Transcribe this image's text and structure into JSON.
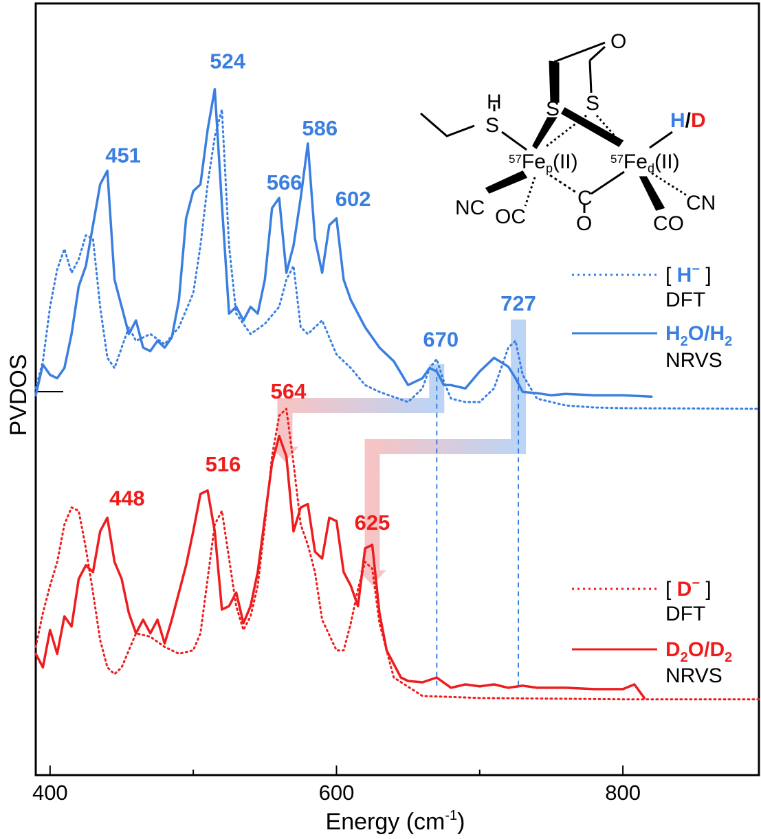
{
  "chart_data": {
    "type": "line",
    "xlabel": "Energy (cm",
    "xlabel_sup": "-1",
    "xlabel_close": ")",
    "ylabel": "PVDOS",
    "xlim": [
      390,
      895
    ],
    "x_ticks": [
      400,
      600,
      800
    ],
    "x_tick_labels": [
      "400",
      "600",
      "800"
    ],
    "ylim": [
      0,
      10
    ],
    "grid": false,
    "colors": {
      "blue": "#3a7fe0",
      "red": "#ee1c1c",
      "blue_band": "#bcd4f5",
      "red_band": "#f6c4c4"
    },
    "series": [
      {
        "name": "H2O/H2 NRVS",
        "color": "#3a7fe0",
        "style": "solid",
        "baseline": 5.0,
        "x": [
          390,
          395,
          400,
          405,
          410,
          415,
          420,
          425,
          430,
          435,
          440,
          445,
          450,
          455,
          460,
          465,
          470,
          475,
          480,
          485,
          490,
          495,
          500,
          505,
          510,
          515,
          520,
          525,
          530,
          535,
          540,
          545,
          550,
          555,
          560,
          565,
          570,
          575,
          580,
          585,
          590,
          595,
          600,
          605,
          610,
          620,
          630,
          640,
          650,
          660,
          665,
          670,
          675,
          680,
          690,
          700,
          710,
          720,
          725,
          730,
          740,
          750,
          760,
          780,
          800,
          820
        ],
        "y": [
          5.2,
          5.65,
          5.5,
          5.45,
          5.6,
          6.1,
          6.8,
          7.1,
          7.7,
          8.3,
          8.5,
          6.9,
          6.5,
          6.1,
          6.3,
          5.9,
          5.85,
          6.0,
          5.9,
          6.05,
          6.6,
          7.8,
          8.2,
          8.3,
          9.1,
          9.7,
          8.0,
          6.4,
          6.5,
          6.3,
          6.5,
          6.4,
          6.9,
          7.95,
          8.1,
          7.0,
          7.4,
          8.1,
          8.9,
          7.5,
          7.0,
          7.7,
          7.8,
          6.9,
          6.6,
          6.2,
          5.9,
          5.7,
          5.35,
          5.45,
          5.6,
          5.55,
          5.35,
          5.35,
          5.3,
          5.55,
          5.75,
          5.62,
          5.45,
          5.25,
          5.23,
          5.2,
          5.22,
          5.2,
          5.2,
          5.18
        ]
      },
      {
        "name": "H- DFT",
        "color": "#3a7fe0",
        "style": "dotted",
        "baseline": 5.0,
        "x": [
          390,
          395,
          400,
          405,
          410,
          415,
          420,
          425,
          430,
          435,
          440,
          445,
          450,
          455,
          460,
          470,
          480,
          490,
          500,
          505,
          510,
          515,
          520,
          525,
          530,
          540,
          550,
          560,
          565,
          570,
          575,
          580,
          590,
          600,
          610,
          620,
          630,
          650,
          660,
          665,
          670,
          675,
          680,
          690,
          700,
          710,
          720,
          725,
          730,
          740,
          760,
          780,
          800,
          895
        ],
        "y": [
          5.3,
          5.7,
          6.5,
          7.05,
          7.35,
          7.0,
          7.2,
          7.55,
          7.5,
          6.5,
          5.75,
          5.6,
          5.9,
          6.2,
          6.0,
          6.1,
          5.95,
          6.2,
          6.7,
          7.4,
          8.3,
          9.0,
          9.4,
          7.4,
          6.4,
          6.1,
          6.25,
          6.5,
          6.9,
          7.1,
          6.2,
          6.1,
          6.3,
          5.8,
          5.6,
          5.35,
          5.25,
          5.1,
          5.3,
          5.6,
          5.73,
          5.4,
          5.15,
          5.1,
          5.1,
          5.3,
          5.9,
          6.0,
          5.5,
          5.15,
          5.05,
          5.02,
          5.01,
          5.0
        ]
      },
      {
        "name": "D2O/D2 NRVS",
        "color": "#ee1c1c",
        "style": "solid",
        "baseline": 0.8,
        "x": [
          390,
          395,
          400,
          405,
          410,
          415,
          420,
          425,
          430,
          435,
          440,
          445,
          450,
          455,
          460,
          465,
          470,
          475,
          480,
          485,
          490,
          495,
          500,
          505,
          510,
          515,
          520,
          525,
          530,
          535,
          540,
          545,
          550,
          555,
          560,
          565,
          570,
          575,
          580,
          585,
          590,
          595,
          600,
          605,
          610,
          615,
          620,
          625,
          630,
          635,
          640,
          645,
          650,
          660,
          670,
          680,
          690,
          700,
          710,
          720,
          730,
          740,
          760,
          780,
          800,
          808,
          815
        ],
        "y": [
          1.4,
          1.2,
          1.75,
          1.4,
          1.95,
          1.8,
          2.5,
          2.7,
          2.6,
          3.2,
          3.4,
          2.75,
          2.5,
          2.0,
          1.7,
          1.9,
          1.7,
          1.9,
          1.55,
          1.9,
          2.3,
          2.7,
          3.2,
          3.75,
          3.8,
          3.2,
          2.05,
          2.1,
          2.3,
          1.85,
          2.1,
          2.6,
          3.4,
          4.2,
          4.6,
          4.3,
          3.2,
          3.55,
          3.6,
          2.9,
          2.8,
          3.4,
          3.35,
          2.6,
          2.4,
          2.1,
          2.95,
          3.0,
          2.0,
          1.45,
          1.25,
          1.05,
          1.0,
          0.98,
          1.05,
          0.9,
          0.95,
          0.92,
          0.95,
          0.9,
          0.93,
          0.9,
          0.9,
          0.88,
          0.88,
          0.95,
          0.75
        ]
      },
      {
        "name": "D- DFT",
        "color": "#ee1c1c",
        "style": "dotted",
        "baseline": 0.8,
        "x": [
          390,
          395,
          400,
          405,
          410,
          415,
          420,
          425,
          430,
          435,
          440,
          445,
          450,
          460,
          470,
          480,
          490,
          500,
          505,
          510,
          515,
          520,
          525,
          530,
          535,
          540,
          545,
          550,
          555,
          560,
          565,
          570,
          575,
          580,
          585,
          590,
          600,
          605,
          610,
          615,
          620,
          625,
          630,
          640,
          660,
          700,
          800,
          895
        ],
        "y": [
          1.5,
          2.0,
          2.4,
          2.75,
          3.3,
          3.55,
          3.5,
          2.95,
          2.3,
          1.6,
          1.2,
          1.1,
          1.2,
          1.7,
          1.65,
          1.5,
          1.4,
          1.45,
          1.7,
          2.5,
          3.3,
          3.5,
          2.8,
          2.1,
          1.75,
          1.95,
          2.4,
          3.3,
          4.3,
          4.9,
          5.0,
          4.2,
          3.3,
          3.0,
          2.6,
          1.9,
          1.45,
          1.45,
          1.85,
          2.35,
          2.75,
          2.65,
          1.85,
          1.05,
          0.78,
          0.75,
          0.73,
          0.73
        ]
      }
    ],
    "peak_labels_blue": [
      {
        "text": "451",
        "x": 451,
        "y": 8.5
      },
      {
        "text": "524",
        "x": 524,
        "y": 9.7
      },
      {
        "text": "566",
        "x": 566,
        "y": 8.1
      },
      {
        "text": "586",
        "x": 586,
        "y": 8.9
      },
      {
        "text": "602",
        "x": 602,
        "y": 7.8
      },
      {
        "text": "670",
        "x": 670,
        "y": 5.73
      },
      {
        "text": "727",
        "x": 727,
        "y": 6.0
      }
    ],
    "peak_labels_red": [
      {
        "text": "448",
        "x": 448,
        "y": 3.4
      },
      {
        "text": "516",
        "x": 516,
        "y": 3.8
      },
      {
        "text": "564",
        "x": 564,
        "y": 5.0
      },
      {
        "text": "625",
        "x": 625,
        "y": 3.0
      }
    ],
    "isotope_shifts": [
      {
        "from": 670,
        "to": 564
      },
      {
        "from": 727,
        "to": 625
      }
    ],
    "dashed_guides": [
      670,
      727
    ],
    "legend": [
      {
        "open": "[ ",
        "label": "H",
        "sup": "−",
        "close": " ]",
        "sub_label": "DFT",
        "color": "#3a7fe0",
        "style": "dotted"
      },
      {
        "label_parts": [
          "H",
          "2",
          "O/H",
          "2"
        ],
        "sub_label": "NRVS",
        "color": "#3a7fe0",
        "style": "solid"
      },
      {
        "open": "[ ",
        "label": "D",
        "sup": "−",
        "close": " ]",
        "sub_label": "DFT",
        "color": "#ee1c1c",
        "style": "dotted"
      },
      {
        "label_parts": [
          "D",
          "2",
          "O/D",
          "2"
        ],
        "sub_label": "NRVS",
        "color": "#ee1c1c",
        "style": "solid"
      }
    ],
    "legend_placement": "right"
  },
  "molecule": {
    "O": "O",
    "S1": "S",
    "S2": "S",
    "H_SH": "H",
    "S_SH": "S",
    "iso1": "57",
    "Fe1": "Fe",
    "Fe1_sub": "p",
    "Fe1_ox": "(II)",
    "iso2": "57",
    "Fe2": "Fe",
    "Fe2_sub": "d",
    "Fe2_ox": "(II)",
    "HD_H": "H",
    "HD_slash": "/",
    "HD_D": "D",
    "NC": "NC",
    "OC": "OC",
    "bridge_C": "C",
    "bridge_O": "O",
    "CO": "CO",
    "CN": "CN"
  }
}
